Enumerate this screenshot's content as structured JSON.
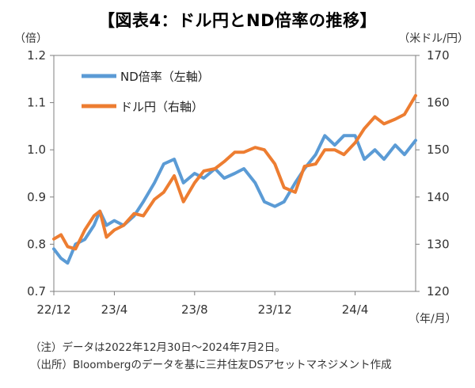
{
  "header": {
    "title": "【図表4：ドル円とND倍率の推移】",
    "left_unit": "（倍）",
    "right_unit": "（米ドル/円）",
    "x_unit": "（年/月）"
  },
  "footer": {
    "note": "（注）データは2022年12月30日～2024年7月2日。",
    "source": "（出所）Bloombergのデータを基に三井住友DSアセットマネジメント作成"
  },
  "colors": {
    "nd_ratio": "#5b9bd5",
    "usdjpy": "#ed7d31",
    "axis": "#7f7f7f"
  },
  "chart_data": {
    "type": "line",
    "title": "【図表4：ドル円とND倍率の推移】",
    "x_range": [
      "2022-12-30",
      "2024-07-02"
    ],
    "x_ticks": [
      {
        "label": "22/12",
        "month": "2022-12"
      },
      {
        "label": "23/4",
        "month": "2023-04"
      },
      {
        "label": "23/8",
        "month": "2023-08"
      },
      {
        "label": "23/12",
        "month": "2023-12"
      },
      {
        "label": "24/4",
        "month": "2024-04"
      }
    ],
    "y_left": {
      "label": "（倍）",
      "range": [
        0.7,
        1.2
      ],
      "ticks": [
        "0.7",
        "0.8",
        "0.9",
        "1.0",
        "1.1",
        "1.2"
      ]
    },
    "y_right": {
      "label": "（米ドル/円）",
      "range": [
        120,
        170
      ],
      "ticks": [
        "120",
        "130",
        "140",
        "150",
        "160",
        "170"
      ]
    },
    "grid": false,
    "legend": "top-left",
    "series": [
      {
        "name": "ND倍率（左軸）",
        "axis": "left",
        "points": [
          [
            "2022-12-30",
            0.79
          ],
          [
            "2023-01-10",
            0.77
          ],
          [
            "2023-01-20",
            0.76
          ],
          [
            "2023-02-01",
            0.8
          ],
          [
            "2023-02-15",
            0.81
          ],
          [
            "2023-03-01",
            0.84
          ],
          [
            "2023-03-10",
            0.87
          ],
          [
            "2023-03-20",
            0.84
          ],
          [
            "2023-04-01",
            0.85
          ],
          [
            "2023-04-15",
            0.84
          ],
          [
            "2023-05-01",
            0.86
          ],
          [
            "2023-05-15",
            0.89
          ],
          [
            "2023-06-01",
            0.93
          ],
          [
            "2023-06-15",
            0.97
          ],
          [
            "2023-07-01",
            0.98
          ],
          [
            "2023-07-15",
            0.93
          ],
          [
            "2023-08-01",
            0.95
          ],
          [
            "2023-08-15",
            0.94
          ],
          [
            "2023-09-01",
            0.96
          ],
          [
            "2023-09-15",
            0.94
          ],
          [
            "2023-10-01",
            0.95
          ],
          [
            "2023-10-15",
            0.96
          ],
          [
            "2023-11-01",
            0.93
          ],
          [
            "2023-11-15",
            0.89
          ],
          [
            "2023-12-01",
            0.88
          ],
          [
            "2023-12-15",
            0.89
          ],
          [
            "2024-01-01",
            0.93
          ],
          [
            "2024-01-15",
            0.96
          ],
          [
            "2024-02-01",
            0.99
          ],
          [
            "2024-02-15",
            1.03
          ],
          [
            "2024-03-01",
            1.01
          ],
          [
            "2024-03-15",
            1.03
          ],
          [
            "2024-04-01",
            1.03
          ],
          [
            "2024-04-15",
            0.98
          ],
          [
            "2024-05-01",
            1.0
          ],
          [
            "2024-05-15",
            0.98
          ],
          [
            "2024-06-01",
            1.01
          ],
          [
            "2024-06-15",
            0.99
          ],
          [
            "2024-07-02",
            1.02
          ]
        ]
      },
      {
        "name": "ドル円（右軸）",
        "axis": "right",
        "points": [
          [
            "2022-12-30",
            131.1
          ],
          [
            "2023-01-10",
            132.0
          ],
          [
            "2023-01-20",
            129.5
          ],
          [
            "2023-02-01",
            129.0
          ],
          [
            "2023-02-15",
            133.0
          ],
          [
            "2023-03-01",
            136.0
          ],
          [
            "2023-03-10",
            137.0
          ],
          [
            "2023-03-20",
            131.5
          ],
          [
            "2023-04-01",
            133.0
          ],
          [
            "2023-04-15",
            134.0
          ],
          [
            "2023-05-01",
            136.5
          ],
          [
            "2023-05-15",
            136.0
          ],
          [
            "2023-06-01",
            139.5
          ],
          [
            "2023-06-15",
            141.0
          ],
          [
            "2023-07-01",
            144.5
          ],
          [
            "2023-07-15",
            139.0
          ],
          [
            "2023-08-01",
            143.0
          ],
          [
            "2023-08-15",
            145.5
          ],
          [
            "2023-09-01",
            146.0
          ],
          [
            "2023-09-15",
            147.5
          ],
          [
            "2023-10-01",
            149.5
          ],
          [
            "2023-10-15",
            149.5
          ],
          [
            "2023-11-01",
            150.5
          ],
          [
            "2023-11-15",
            150.0
          ],
          [
            "2023-12-01",
            147.0
          ],
          [
            "2023-12-15",
            142.0
          ],
          [
            "2024-01-01",
            141.0
          ],
          [
            "2024-01-15",
            146.5
          ],
          [
            "2024-02-01",
            147.0
          ],
          [
            "2024-02-15",
            150.0
          ],
          [
            "2024-03-01",
            150.0
          ],
          [
            "2024-03-15",
            149.0
          ],
          [
            "2024-04-01",
            151.5
          ],
          [
            "2024-04-15",
            154.5
          ],
          [
            "2024-05-01",
            157.0
          ],
          [
            "2024-05-15",
            155.5
          ],
          [
            "2024-06-01",
            156.5
          ],
          [
            "2024-06-15",
            157.5
          ],
          [
            "2024-07-02",
            161.5
          ]
        ]
      }
    ]
  }
}
